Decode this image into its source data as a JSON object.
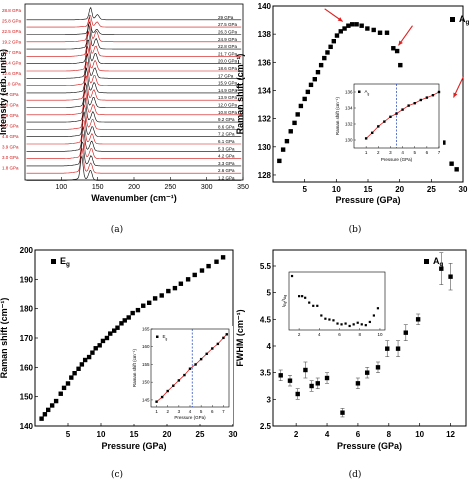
{
  "chart_data": [
    {
      "id": "a",
      "type": "line",
      "xlabel": "Wavenumber (cm⁻¹)",
      "ylabel": "Intensity (arb. units)",
      "xlim": [
        50,
        350
      ],
      "xticks": [
        100,
        150,
        200,
        250,
        300,
        350
      ],
      "labels_right": [
        "29 GPa",
        "27.5 GPa",
        "26.3 GPa",
        "24.9 GPa",
        "22.8 GPa",
        "21.7 GPa",
        "20.0 GPa",
        "18.6 GPa",
        "17 GPa",
        "15.9 GPa",
        "14.9 GPa",
        "13.9 GPa",
        "12.0 GPa",
        "10.8 GPa",
        "9.2 GPa",
        "8.6 GPa",
        "7.2 GPa",
        "6.1 GPa",
        "5.3 GPa",
        "4.2 GPa",
        "3.3 GPa",
        "2.6 GPa",
        "1.2 GPa"
      ],
      "labels_left": [
        "28.8 GPa",
        "25.8 GPa",
        "22.5 GPa",
        "19.2 GPa",
        "16.7 GPa",
        "14.4 GPa",
        "12.6 GPa",
        "11.0 GPa",
        "9.6 GPa",
        "8.0 GPa",
        "6.9 GPa",
        "5.7 GPa",
        "4.8 GPa",
        "3.9 GPa",
        "3.0 GPa",
        "1.8 GPa"
      ],
      "colors": {
        "black": "#000000",
        "red": "#d01010"
      }
    },
    {
      "id": "b",
      "type": "scatter",
      "legend": "Ag",
      "xlabel": "Pressure (GPa)",
      "ylabel": "Raman shift (cm⁻¹)",
      "xlim": [
        0,
        30
      ],
      "ylim": [
        127.5,
        140
      ],
      "xticks": [
        5,
        10,
        15,
        20,
        25,
        30
      ],
      "yticks": [
        128,
        130,
        132,
        134,
        136,
        138,
        140
      ],
      "x": [
        1,
        1.6,
        2.2,
        2.8,
        3.4,
        3.9,
        4.4,
        5,
        5.5,
        6,
        6.6,
        7.1,
        7.6,
        8.1,
        8.6,
        9.1,
        9.6,
        10.1,
        10.7,
        11.3,
        11.9,
        12.5,
        13.2,
        14,
        14.9,
        15.9,
        16.9,
        18,
        19,
        19.6,
        20.1,
        25.3,
        26.2,
        26.9,
        28.2,
        29
      ],
      "y": [
        129,
        129.8,
        130.4,
        131.1,
        131.7,
        132.3,
        132.9,
        133.4,
        133.9,
        134.4,
        134.8,
        135.3,
        135.8,
        136.3,
        136.7,
        137.1,
        137.5,
        137.9,
        138.2,
        138.4,
        138.6,
        138.7,
        138.7,
        138.6,
        138.4,
        138.3,
        138.1,
        138.1,
        137,
        136.8,
        135.8,
        134,
        133.9,
        130.3,
        128.8,
        128.4
      ],
      "inset": {
        "legend": "Ag",
        "xlabel": "Pressure (GPa)",
        "ylabel": "Raman shift (cm⁻¹)",
        "xlim": [
          0,
          7
        ],
        "ylim": [
          129,
          137
        ],
        "xticks": [
          1,
          2,
          3,
          4,
          5,
          6,
          7
        ],
        "yticks": [
          130,
          132,
          134,
          136
        ],
        "vline": 3.5,
        "x": [
          1,
          1.5,
          2,
          2.5,
          3,
          3.5,
          4,
          4.5,
          5,
          5.5,
          6,
          6.5,
          7
        ],
        "y": [
          130.2,
          130.9,
          131.7,
          132.3,
          132.9,
          133.3,
          133.8,
          134.3,
          134.6,
          135,
          135.3,
          135.6,
          136
        ]
      },
      "arrows_at_x": [
        11,
        19.5,
        28.5
      ]
    },
    {
      "id": "c",
      "type": "scatter",
      "legend": "Eg",
      "xlabel": "Pressure (GPa)",
      "ylabel": "Raman shift (cm⁻¹)",
      "xlim": [
        0,
        30
      ],
      "ylim": [
        140,
        200
      ],
      "xticks": [
        5,
        10,
        15,
        20,
        25,
        30
      ],
      "yticks": [
        140,
        150,
        160,
        170,
        180,
        190,
        200
      ],
      "x": [
        1,
        1.5,
        2,
        2.6,
        3.2,
        3.9,
        4.4,
        5,
        5.5,
        6,
        6.6,
        7.1,
        7.6,
        8.2,
        8.7,
        9.2,
        9.8,
        10.3,
        10.9,
        11.4,
        12,
        12.5,
        13.1,
        13.6,
        14.2,
        14.8,
        15.6,
        16.4,
        17.3,
        18.2,
        19.2,
        20.2,
        21.2,
        22.1,
        23.2,
        24.2,
        25.3,
        26.3,
        27.5,
        28.5
      ],
      "y": [
        142.5,
        144,
        145.5,
        147,
        148.5,
        151,
        153,
        154.5,
        156.5,
        158,
        159.5,
        161,
        162.5,
        163.5,
        165,
        166.5,
        167.5,
        169,
        170,
        171.5,
        172.5,
        173.5,
        175,
        176,
        177,
        178.5,
        179.5,
        181,
        182,
        183.5,
        184.5,
        186,
        187,
        188.5,
        190,
        191.5,
        193,
        194.5,
        196,
        197.5
      ],
      "inset": {
        "legend": "Eg",
        "xlabel": "Pressure (GPa)",
        "ylabel": "Raman shift (cm⁻¹)",
        "xlim": [
          0.5,
          7.5
        ],
        "ylim": [
          143,
          165
        ],
        "xticks": [
          1,
          2,
          3,
          4,
          5,
          6,
          7
        ],
        "yticks": [
          145,
          150,
          155,
          160,
          165
        ],
        "vline": 4.2,
        "x": [
          1,
          1.5,
          2,
          2.5,
          3,
          3.5,
          4,
          4.5,
          5,
          5.5,
          6,
          6.5,
          7,
          7.3
        ],
        "y": [
          144.5,
          145.8,
          147.5,
          149,
          150.5,
          152,
          153.8,
          155,
          156.5,
          158,
          159.5,
          160.8,
          162.5,
          163.5
        ]
      }
    },
    {
      "id": "d",
      "type": "scatter",
      "legend": "Ag",
      "xlabel": "Pressure (GPa)",
      "ylabel": "FWHM (cm⁻¹)",
      "xlim": [
        0.5,
        13
      ],
      "ylim": [
        2.5,
        5.8
      ],
      "xticks": [
        2,
        4,
        6,
        8,
        10,
        12
      ],
      "yticks": [
        2.5,
        3,
        3.5,
        4,
        4.5,
        5,
        5.5
      ],
      "x": [
        1,
        1.6,
        2.1,
        2.6,
        3,
        3.4,
        4,
        5,
        6,
        6.6,
        7.3,
        7.9,
        8.6,
        9.1,
        9.9,
        11.4,
        12
      ],
      "y": [
        3.45,
        3.35,
        3.1,
        3.55,
        3.25,
        3.3,
        3.4,
        2.75,
        3.3,
        3.5,
        3.6,
        3.95,
        3.95,
        4.25,
        4.5,
        5.45,
        5.3
      ],
      "err": [
        0.1,
        0.1,
        0.1,
        0.15,
        0.1,
        0.1,
        0.1,
        0.08,
        0.1,
        0.1,
        0.1,
        0.15,
        0.15,
        0.15,
        0.1,
        0.3,
        0.25
      ],
      "inset": {
        "ylabel": "IEg/IAg",
        "xticks": [
          2,
          4,
          6,
          8,
          10
        ],
        "xlim": [
          1,
          10.5
        ],
        "x": [
          1.3,
          2,
          2.3,
          2.6,
          3,
          3.4,
          3.8,
          4.2,
          4.6,
          5,
          5.4,
          5.8,
          6.2,
          6.6,
          7,
          7.4,
          7.8,
          8.2,
          8.6,
          9,
          9.4,
          9.8
        ],
        "y": [
          0.95,
          0.7,
          0.7,
          0.68,
          0.62,
          0.58,
          0.58,
          0.46,
          0.42,
          0.41,
          0.4,
          0.36,
          0.35,
          0.36,
          0.33,
          0.35,
          0.37,
          0.35,
          0.34,
          0.38,
          0.46,
          0.55
        ]
      }
    }
  ],
  "captions": {
    "a": "(a)",
    "b": "(b)",
    "c": "(c)",
    "d": "(d)"
  },
  "legend_symbol": "■"
}
